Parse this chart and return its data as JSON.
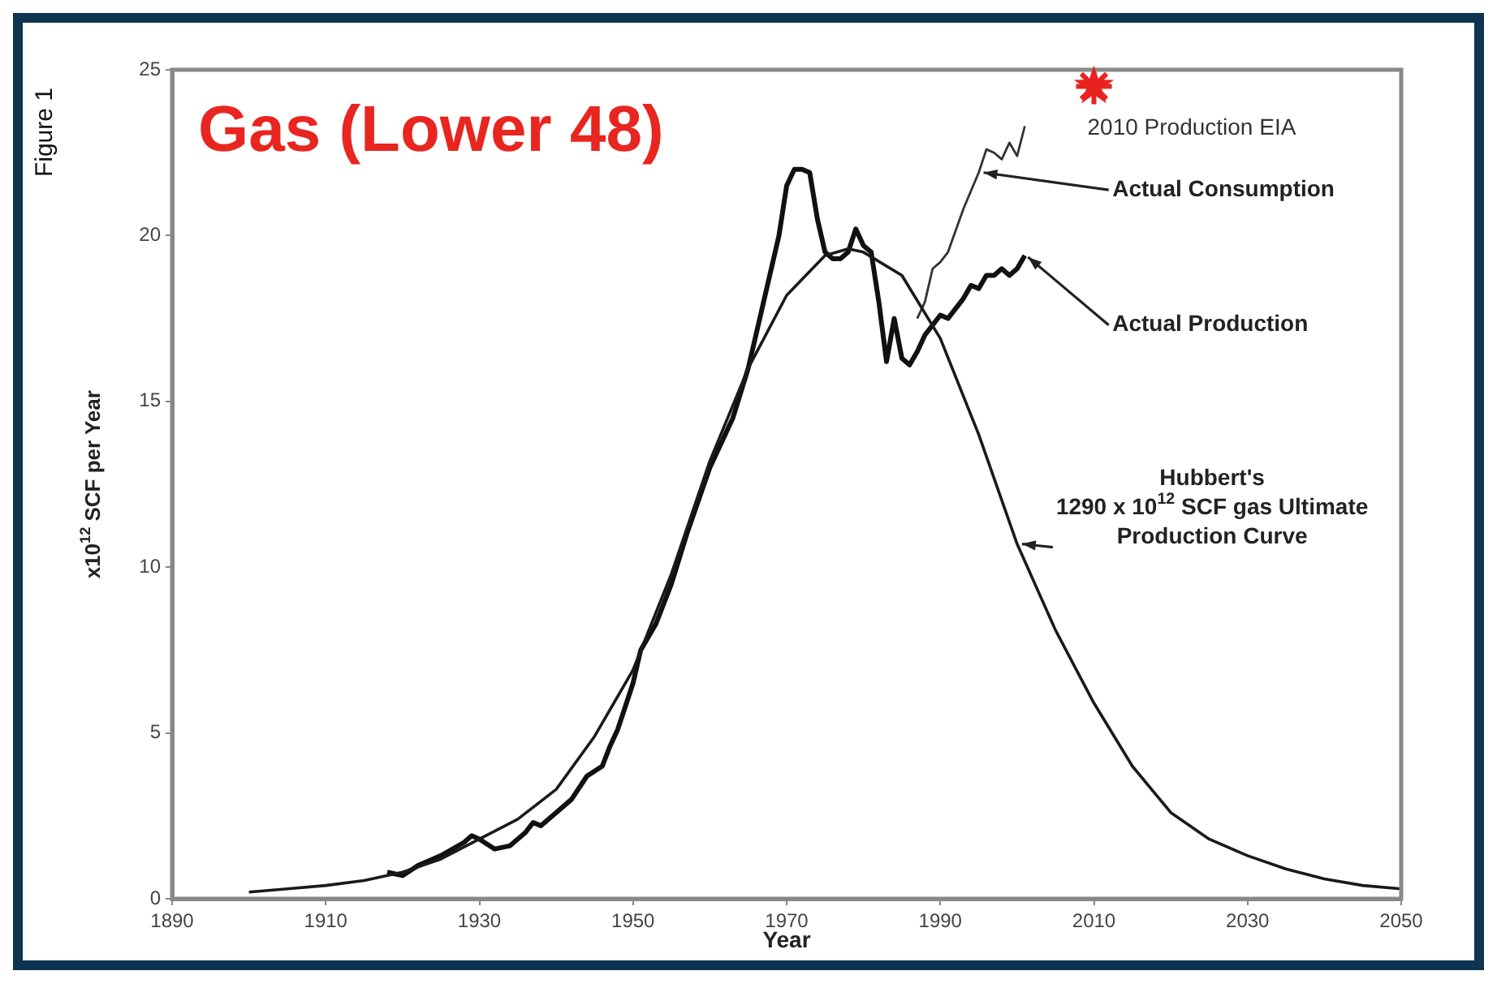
{
  "chart_data": {
    "type": "line",
    "title": "Gas (Lower 48)",
    "xlabel": "Year",
    "ylabel": "x10$^{12}$ SCF per Year",
    "annotations": [
      "Figure 1",
      {
        "text": "2010 Production EIA",
        "x": 2010,
        "y": 24.5
      }
    ],
    "xlim": [
      1890,
      2050
    ],
    "xticks": [
      1890,
      1910,
      1930,
      1950,
      1970,
      1990,
      2010,
      2030,
      2050
    ],
    "ylim": [
      0,
      25
    ],
    "yticks": [
      0,
      5,
      10,
      15,
      20,
      25
    ],
    "grid": false,
    "legend": false,
    "marker": "none",
    "line_style": "solid",
    "series": [
      {
        "name": "Hubbert's 1290 x 10$^{12}$ SCF gas Ultimate Production Curve",
        "type": "line",
        "color": "#1a1a1a",
        "x": [
          1900,
          1905,
          1910,
          1915,
          1920,
          1925,
          1930,
          1935,
          1940,
          1945,
          1950,
          1955,
          1960,
          1965,
          1970,
          1975,
          1978,
          1980,
          1985,
          1990,
          1995,
          2000,
          2005,
          2010,
          2015,
          2020,
          2025,
          2030,
          2035,
          2040,
          2045,
          2050
        ],
        "values": [
          0.2,
          0.3,
          0.4,
          0.55,
          0.8,
          1.2,
          1.8,
          2.4,
          3.3,
          4.9,
          6.9,
          9.8,
          13.2,
          16.0,
          18.2,
          19.4,
          19.6,
          19.5,
          18.8,
          16.9,
          14.0,
          10.7,
          8.1,
          5.9,
          4.0,
          2.6,
          1.8,
          1.3,
          0.9,
          0.6,
          0.4,
          0.3
        ]
      },
      {
        "name": "Actual Production",
        "type": "line",
        "color": "#111111",
        "x": [
          1918,
          1920,
          1922,
          1925,
          1928,
          1929,
          1930,
          1932,
          1934,
          1936,
          1937,
          1938,
          1940,
          1942,
          1944,
          1946,
          1947,
          1948,
          1950,
          1951,
          1953,
          1955,
          1957,
          1960,
          1963,
          1965,
          1967,
          1969,
          1970,
          1971,
          1972,
          1973,
          1974,
          1975,
          1976,
          1977,
          1978,
          1979,
          1980,
          1981,
          1982,
          1983,
          1984,
          1985,
          1986,
          1987,
          1988,
          1989,
          1990,
          1991,
          1992,
          1993,
          1994,
          1995,
          1996,
          1997,
          1998,
          1999,
          2000,
          2001
        ],
        "values": [
          0.8,
          0.7,
          1.0,
          1.3,
          1.7,
          1.9,
          1.8,
          1.5,
          1.6,
          2.0,
          2.3,
          2.2,
          2.6,
          3.0,
          3.7,
          4.0,
          4.6,
          5.1,
          6.5,
          7.5,
          8.3,
          9.5,
          11.0,
          13.0,
          14.5,
          16.0,
          18.0,
          20.0,
          21.5,
          22.0,
          22.0,
          21.9,
          20.5,
          19.5,
          19.3,
          19.3,
          19.5,
          20.2,
          19.7,
          19.5,
          18.0,
          16.2,
          17.5,
          16.3,
          16.1,
          16.5,
          17.0,
          17.3,
          17.6,
          17.5,
          17.8,
          18.1,
          18.5,
          18.4,
          18.8,
          18.8,
          19.0,
          18.8,
          19.0,
          19.4
        ]
      },
      {
        "name": "Actual Consumption",
        "type": "line",
        "color": "#333333",
        "x": [
          1987,
          1988,
          1989,
          1990,
          1991,
          1993,
          1995,
          1996,
          1997,
          1998,
          1999,
          2000,
          2001
        ],
        "values": [
          17.5,
          18.0,
          19.0,
          19.2,
          19.5,
          20.8,
          21.9,
          22.6,
          22.5,
          22.3,
          22.8,
          22.4,
          23.3
        ]
      },
      {
        "type": "scatter",
        "marker": "star",
        "color": "#e8231f",
        "x": [
          2010
        ],
        "values": [
          24.5
        ]
      }
    ]
  }
}
